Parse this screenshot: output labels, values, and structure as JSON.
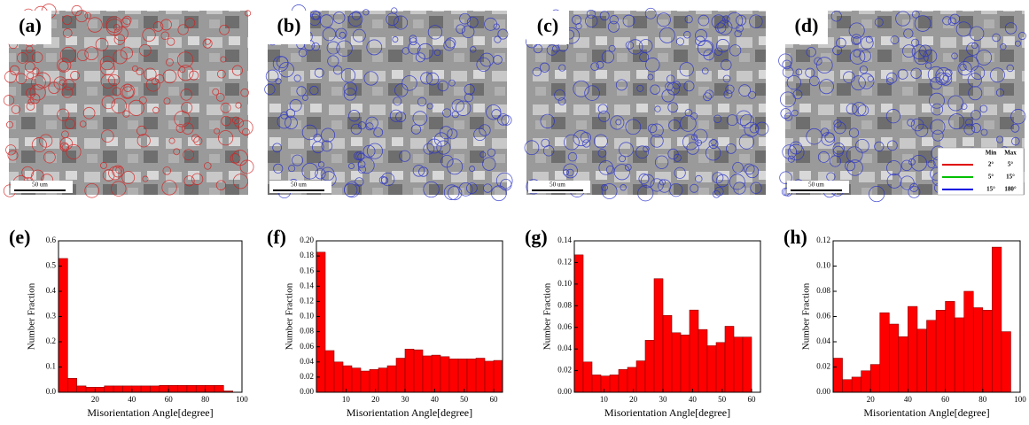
{
  "micrographs": [
    {
      "label": "(a)",
      "scale_bar": "50 um",
      "boundary": "#d42020"
    },
    {
      "label": "(b)",
      "scale_bar": "50 um",
      "boundary": "#2830c8"
    },
    {
      "label": "(c)",
      "scale_bar": "50 um",
      "boundary": "#2830c8"
    },
    {
      "label": "(d)",
      "scale_bar": "50 um",
      "boundary": "#2830c8"
    }
  ],
  "boundary_legend": {
    "headers": [
      "Min",
      "Max"
    ],
    "rows": [
      {
        "min": "2°",
        "max": "5°",
        "color": "#e00000"
      },
      {
        "min": "5°",
        "max": "15°",
        "color": "#00c000"
      },
      {
        "min": "15°",
        "max": "180°",
        "color": "#0000e0"
      }
    ]
  },
  "chart_data": [
    {
      "type": "histogram",
      "label": "(e)",
      "x_label": "Misorientation Angle[degree]",
      "y_label": "Number Fraction",
      "color": "#ff0000",
      "bins": [
        0,
        5,
        10,
        15,
        20,
        25,
        30,
        35,
        40,
        45,
        50,
        55,
        60,
        65,
        70,
        75,
        80,
        85,
        90,
        95
      ],
      "values": [
        0.53,
        0.055,
        0.025,
        0.02,
        0.02,
        0.025,
        0.025,
        0.025,
        0.025,
        0.025,
        0.025,
        0.027,
        0.027,
        0.027,
        0.027,
        0.027,
        0.027,
        0.027,
        0.005
      ],
      "xlim": [
        0,
        100
      ],
      "xticks": [
        20,
        40,
        60,
        80,
        100
      ],
      "ylim": [
        0,
        0.6
      ],
      "yticks": [
        {
          "value": 0,
          "label": "0.0"
        },
        0.1,
        0.2,
        0.3,
        0.4,
        0.5,
        0.6
      ]
    },
    {
      "type": "histogram",
      "label": "(f)",
      "x_label": "Misorientation Angle[degree]",
      "y_label": "Number Fraction",
      "color": "#ff0000",
      "bins": [
        0,
        3,
        6,
        9,
        12,
        15,
        18,
        21,
        24,
        27,
        30,
        33,
        36,
        39,
        42,
        45,
        48,
        51,
        54,
        57,
        60,
        63
      ],
      "values": [
        0.185,
        0.055,
        0.04,
        0.035,
        0.032,
        0.028,
        0.03,
        0.032,
        0.035,
        0.045,
        0.057,
        0.056,
        0.048,
        0.049,
        0.047,
        0.044,
        0.044,
        0.044,
        0.045,
        0.041,
        0.042
      ],
      "xlim": [
        0,
        63
      ],
      "xticks": [
        10,
        20,
        30,
        40,
        50,
        60
      ],
      "ylim": [
        0,
        0.2
      ],
      "yticks": [
        {
          "value": 0,
          "label": "0.00"
        },
        0.02,
        0.04,
        0.06,
        0.08,
        {
          "value": 0.1,
          "label": "0.10"
        },
        0.12,
        0.14,
        0.16,
        0.18,
        {
          "value": 0.2,
          "label": "0.20"
        }
      ]
    },
    {
      "type": "histogram",
      "label": "(g)",
      "x_label": "Misorientation Angle[degree]",
      "y_label": "Number Fraction",
      "color": "#ff0000",
      "bins": [
        0,
        3,
        6,
        9,
        12,
        15,
        18,
        21,
        24,
        27,
        30,
        33,
        36,
        39,
        42,
        45,
        48,
        51,
        54,
        57,
        60
      ],
      "values": [
        0.127,
        0.028,
        0.016,
        0.015,
        0.016,
        0.021,
        0.023,
        0.029,
        0.048,
        0.105,
        0.071,
        0.055,
        0.053,
        0.076,
        0.058,
        0.043,
        0.046,
        0.061,
        0.051,
        0.051
      ],
      "xlim": [
        0,
        63
      ],
      "xticks": [
        10,
        20,
        30,
        40,
        50,
        60
      ],
      "ylim": [
        0,
        0.14
      ],
      "yticks": [
        {
          "value": 0,
          "label": "0.00"
        },
        0.02,
        0.04,
        0.06,
        0.08,
        {
          "value": 0.1,
          "label": "0.10"
        },
        0.12,
        0.14
      ]
    },
    {
      "type": "histogram",
      "label": "(h)",
      "x_label": "Misorientation Angle[degree]",
      "y_label": "Number Fraction",
      "color": "#ff0000",
      "bins": [
        0,
        5,
        10,
        15,
        20,
        25,
        30,
        35,
        40,
        45,
        50,
        55,
        60,
        65,
        70,
        75,
        80,
        85,
        90,
        95
      ],
      "values": [
        0.027,
        0.01,
        0.012,
        0.017,
        0.022,
        0.063,
        0.054,
        0.044,
        0.068,
        0.05,
        0.057,
        0.065,
        0.072,
        0.059,
        0.08,
        0.067,
        0.065,
        0.115,
        0.048
      ],
      "xlim": [
        0,
        100
      ],
      "xticks": [
        20,
        40,
        60,
        80,
        100
      ],
      "ylim": [
        0,
        0.12
      ],
      "yticks": [
        {
          "value": 0,
          "label": "0.00"
        },
        0.02,
        0.04,
        0.06,
        0.08,
        {
          "value": 0.1,
          "label": "0.10"
        },
        0.12
      ]
    }
  ]
}
